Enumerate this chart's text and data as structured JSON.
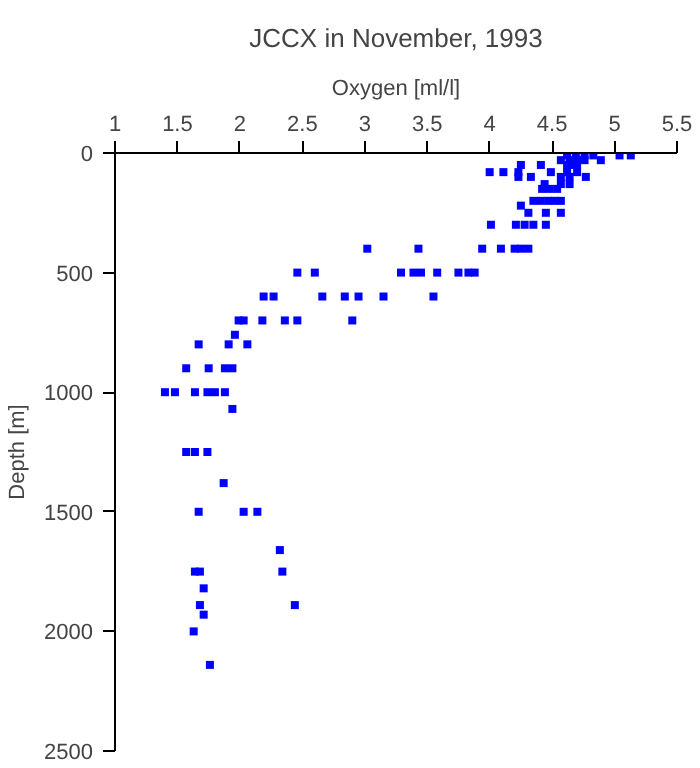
{
  "chart_data": {
    "type": "scatter",
    "title": "JCCX in November, 1993",
    "xlabel": "Oxygen [ml/l]",
    "ylabel": "Depth [m]",
    "series": [
      {
        "color": "#0000ff",
        "x": [
          4.62,
          4.69,
          4.76,
          4.83,
          5.04,
          5.13,
          4.57,
          4.64,
          4.7,
          4.76,
          4.89,
          4.25,
          4.41,
          4.62,
          4.66,
          4.7,
          4.0,
          4.11,
          4.23,
          4.49,
          4.62,
          4.7,
          4.23,
          4.33,
          4.57,
          4.64,
          4.77,
          4.44,
          4.57,
          4.64,
          4.42,
          4.48,
          4.54,
          4.35,
          4.41,
          4.47,
          4.52,
          4.57,
          4.25,
          4.31,
          4.45,
          4.57,
          4.01,
          4.21,
          4.28,
          4.35,
          4.45,
          3.02,
          3.43,
          3.94,
          4.09,
          4.2,
          4.25,
          4.31,
          2.46,
          2.6,
          3.29,
          3.39,
          3.45,
          3.58,
          3.75,
          3.83,
          3.88,
          2.19,
          2.27,
          2.66,
          2.84,
          2.95,
          3.15,
          3.55,
          1.99,
          2.03,
          2.18,
          2.36,
          2.46,
          2.9,
          1.96,
          1.67,
          1.91,
          2.06,
          1.57,
          1.75,
          1.88,
          1.94,
          1.4,
          1.48,
          1.64,
          1.74,
          1.8,
          1.88,
          1.94,
          1.57,
          1.64,
          1.74,
          1.87,
          1.67,
          2.03,
          2.14,
          2.32,
          1.64,
          1.68,
          2.34,
          1.71,
          1.68,
          2.44,
          1.71,
          1.63,
          1.76
        ],
        "values": [
          10,
          10,
          10,
          10,
          10,
          10,
          30,
          30,
          30,
          30,
          30,
          50,
          50,
          50,
          50,
          50,
          80,
          80,
          80,
          80,
          80,
          80,
          100,
          100,
          100,
          100,
          100,
          130,
          130,
          130,
          150,
          150,
          150,
          200,
          200,
          200,
          200,
          200,
          220,
          250,
          250,
          250,
          300,
          300,
          300,
          300,
          300,
          400,
          400,
          400,
          400,
          400,
          400,
          400,
          500,
          500,
          500,
          500,
          500,
          500,
          500,
          500,
          500,
          600,
          600,
          600,
          600,
          600,
          600,
          600,
          700,
          700,
          700,
          700,
          700,
          700,
          760,
          800,
          800,
          800,
          900,
          900,
          900,
          900,
          1000,
          1000,
          1000,
          1000,
          1000,
          1000,
          1070,
          1250,
          1250,
          1250,
          1380,
          1500,
          1500,
          1500,
          1660,
          1750,
          1750,
          1750,
          1820,
          1890,
          1890,
          1930,
          2000,
          2140
        ]
      }
    ],
    "xlim": [
      1,
      5.5
    ],
    "xticks": [
      1,
      1.5,
      2,
      2.5,
      3,
      3.5,
      4,
      4.5,
      5,
      5.5
    ],
    "ylim": [
      2500,
      0
    ],
    "yticks": [
      0,
      500,
      1000,
      1500,
      2000,
      2500
    ],
    "marker": "square",
    "grid": false
  }
}
